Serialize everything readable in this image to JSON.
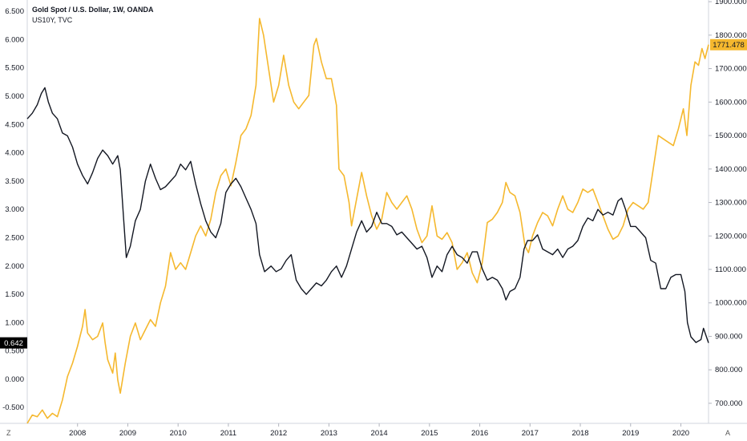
{
  "header": {
    "title": "Gold Spot / U.S. Dollar, 1W, OANDA",
    "subtitle": "US10Y, TVC"
  },
  "corner": {
    "left": "Z",
    "right": "A"
  },
  "colors": {
    "gold": "#f5b82e",
    "yield": "#131722",
    "axis": "#d1d4dc",
    "badge_yield_bg": "#000000"
  },
  "chart_data": {
    "type": "line",
    "x_ticks": [
      "2008",
      "2009",
      "2010",
      "2011",
      "2012",
      "2013",
      "2014",
      "2015",
      "2016",
      "2017",
      "2018",
      "2019",
      "2020"
    ],
    "x_range": [
      2007.0,
      2020.55
    ],
    "left_axis": {
      "ticks": [
        "6.500",
        "6.000",
        "5.500",
        "5.000",
        "4.500",
        "4.000",
        "3.500",
        "3.000",
        "2.500",
        "2.000",
        "1.500",
        "1.000",
        "0.500",
        "0.000",
        "-0.500"
      ],
      "range": [
        -0.78,
        6.7
      ]
    },
    "right_axis": {
      "ticks": [
        "1900.000",
        "1800.000",
        "1700.000",
        "1600.000",
        "1500.000",
        "1400.000",
        "1300.000",
        "1200.000",
        "1100.000",
        "1000.000",
        "900.000",
        "800.000",
        "700.000"
      ],
      "range": [
        640,
        1905
      ]
    },
    "series": [
      {
        "name": "US10Y",
        "axis": "left",
        "last_value": "0.642",
        "points": [
          [
            2007.0,
            4.6
          ],
          [
            2007.1,
            4.7
          ],
          [
            2007.2,
            4.85
          ],
          [
            2007.28,
            5.05
          ],
          [
            2007.35,
            5.15
          ],
          [
            2007.42,
            4.9
          ],
          [
            2007.5,
            4.7
          ],
          [
            2007.6,
            4.6
          ],
          [
            2007.7,
            4.35
          ],
          [
            2007.8,
            4.3
          ],
          [
            2007.9,
            4.1
          ],
          [
            2008.0,
            3.8
          ],
          [
            2008.1,
            3.6
          ],
          [
            2008.2,
            3.45
          ],
          [
            2008.3,
            3.65
          ],
          [
            2008.4,
            3.9
          ],
          [
            2008.5,
            4.05
          ],
          [
            2008.6,
            3.95
          ],
          [
            2008.7,
            3.8
          ],
          [
            2008.8,
            3.95
          ],
          [
            2008.85,
            3.7
          ],
          [
            2008.92,
            2.8
          ],
          [
            2008.97,
            2.15
          ],
          [
            2009.05,
            2.35
          ],
          [
            2009.15,
            2.8
          ],
          [
            2009.25,
            3.0
          ],
          [
            2009.35,
            3.5
          ],
          [
            2009.45,
            3.8
          ],
          [
            2009.55,
            3.55
          ],
          [
            2009.65,
            3.35
          ],
          [
            2009.75,
            3.4
          ],
          [
            2009.85,
            3.5
          ],
          [
            2009.95,
            3.6
          ],
          [
            2010.05,
            3.8
          ],
          [
            2010.15,
            3.7
          ],
          [
            2010.25,
            3.85
          ],
          [
            2010.35,
            3.45
          ],
          [
            2010.45,
            3.1
          ],
          [
            2010.55,
            2.8
          ],
          [
            2010.65,
            2.6
          ],
          [
            2010.75,
            2.5
          ],
          [
            2010.85,
            2.75
          ],
          [
            2010.95,
            3.3
          ],
          [
            2011.05,
            3.45
          ],
          [
            2011.15,
            3.55
          ],
          [
            2011.25,
            3.4
          ],
          [
            2011.35,
            3.2
          ],
          [
            2011.45,
            3.0
          ],
          [
            2011.55,
            2.75
          ],
          [
            2011.62,
            2.2
          ],
          [
            2011.72,
            1.9
          ],
          [
            2011.85,
            2.0
          ],
          [
            2011.95,
            1.9
          ],
          [
            2012.05,
            1.95
          ],
          [
            2012.15,
            2.1
          ],
          [
            2012.25,
            2.2
          ],
          [
            2012.35,
            1.75
          ],
          [
            2012.45,
            1.6
          ],
          [
            2012.55,
            1.5
          ],
          [
            2012.65,
            1.6
          ],
          [
            2012.75,
            1.7
          ],
          [
            2012.85,
            1.65
          ],
          [
            2012.95,
            1.75
          ],
          [
            2013.05,
            1.9
          ],
          [
            2013.15,
            2.0
          ],
          [
            2013.25,
            1.8
          ],
          [
            2013.35,
            2.0
          ],
          [
            2013.45,
            2.3
          ],
          [
            2013.55,
            2.6
          ],
          [
            2013.65,
            2.8
          ],
          [
            2013.75,
            2.6
          ],
          [
            2013.85,
            2.7
          ],
          [
            2013.95,
            2.95
          ],
          [
            2014.05,
            2.75
          ],
          [
            2014.15,
            2.75
          ],
          [
            2014.25,
            2.7
          ],
          [
            2014.35,
            2.55
          ],
          [
            2014.45,
            2.6
          ],
          [
            2014.55,
            2.5
          ],
          [
            2014.65,
            2.4
          ],
          [
            2014.75,
            2.3
          ],
          [
            2014.85,
            2.35
          ],
          [
            2014.95,
            2.15
          ],
          [
            2015.05,
            1.8
          ],
          [
            2015.15,
            2.0
          ],
          [
            2015.25,
            1.9
          ],
          [
            2015.35,
            2.2
          ],
          [
            2015.45,
            2.35
          ],
          [
            2015.55,
            2.2
          ],
          [
            2015.65,
            2.15
          ],
          [
            2015.75,
            2.05
          ],
          [
            2015.85,
            2.25
          ],
          [
            2015.95,
            2.25
          ],
          [
            2016.05,
            1.95
          ],
          [
            2016.15,
            1.75
          ],
          [
            2016.25,
            1.8
          ],
          [
            2016.35,
            1.75
          ],
          [
            2016.45,
            1.6
          ],
          [
            2016.52,
            1.4
          ],
          [
            2016.6,
            1.55
          ],
          [
            2016.7,
            1.6
          ],
          [
            2016.8,
            1.8
          ],
          [
            2016.88,
            2.3
          ],
          [
            2016.95,
            2.45
          ],
          [
            2017.05,
            2.45
          ],
          [
            2017.15,
            2.55
          ],
          [
            2017.25,
            2.3
          ],
          [
            2017.35,
            2.25
          ],
          [
            2017.45,
            2.2
          ],
          [
            2017.55,
            2.3
          ],
          [
            2017.65,
            2.15
          ],
          [
            2017.75,
            2.3
          ],
          [
            2017.85,
            2.35
          ],
          [
            2017.95,
            2.45
          ],
          [
            2018.05,
            2.7
          ],
          [
            2018.15,
            2.85
          ],
          [
            2018.25,
            2.8
          ],
          [
            2018.35,
            3.0
          ],
          [
            2018.45,
            2.9
          ],
          [
            2018.55,
            2.95
          ],
          [
            2018.65,
            2.9
          ],
          [
            2018.75,
            3.15
          ],
          [
            2018.82,
            3.2
          ],
          [
            2018.9,
            3.0
          ],
          [
            2019.0,
            2.7
          ],
          [
            2019.1,
            2.7
          ],
          [
            2019.2,
            2.6
          ],
          [
            2019.3,
            2.5
          ],
          [
            2019.4,
            2.1
          ],
          [
            2019.5,
            2.05
          ],
          [
            2019.6,
            1.6
          ],
          [
            2019.7,
            1.6
          ],
          [
            2019.8,
            1.8
          ],
          [
            2019.9,
            1.85
          ],
          [
            2020.0,
            1.85
          ],
          [
            2020.08,
            1.55
          ],
          [
            2020.13,
            1.0
          ],
          [
            2020.2,
            0.75
          ],
          [
            2020.3,
            0.65
          ],
          [
            2020.4,
            0.7
          ],
          [
            2020.45,
            0.9
          ],
          [
            2020.55,
            0.642
          ]
        ]
      },
      {
        "name": "XAUUSD",
        "axis": "right",
        "last_value": "1771.478",
        "points": [
          [
            2007.0,
            640
          ],
          [
            2007.1,
            665
          ],
          [
            2007.2,
            660
          ],
          [
            2007.3,
            680
          ],
          [
            2007.4,
            655
          ],
          [
            2007.5,
            670
          ],
          [
            2007.6,
            660
          ],
          [
            2007.7,
            710
          ],
          [
            2007.8,
            780
          ],
          [
            2007.9,
            820
          ],
          [
            2008.0,
            870
          ],
          [
            2008.1,
            930
          ],
          [
            2008.15,
            980
          ],
          [
            2008.2,
            910
          ],
          [
            2008.3,
            890
          ],
          [
            2008.4,
            900
          ],
          [
            2008.5,
            940
          ],
          [
            2008.55,
            880
          ],
          [
            2008.6,
            830
          ],
          [
            2008.7,
            790
          ],
          [
            2008.75,
            850
          ],
          [
            2008.8,
            770
          ],
          [
            2008.85,
            730
          ],
          [
            2008.95,
            820
          ],
          [
            2009.05,
            900
          ],
          [
            2009.15,
            940
          ],
          [
            2009.25,
            890
          ],
          [
            2009.35,
            920
          ],
          [
            2009.45,
            950
          ],
          [
            2009.55,
            930
          ],
          [
            2009.65,
            1000
          ],
          [
            2009.75,
            1050
          ],
          [
            2009.85,
            1150
          ],
          [
            2009.95,
            1100
          ],
          [
            2010.05,
            1120
          ],
          [
            2010.15,
            1100
          ],
          [
            2010.25,
            1150
          ],
          [
            2010.35,
            1200
          ],
          [
            2010.45,
            1230
          ],
          [
            2010.55,
            1200
          ],
          [
            2010.65,
            1250
          ],
          [
            2010.75,
            1330
          ],
          [
            2010.85,
            1380
          ],
          [
            2010.95,
            1400
          ],
          [
            2011.05,
            1350
          ],
          [
            2011.15,
            1420
          ],
          [
            2011.25,
            1500
          ],
          [
            2011.35,
            1520
          ],
          [
            2011.45,
            1560
          ],
          [
            2011.55,
            1650
          ],
          [
            2011.62,
            1850
          ],
          [
            2011.7,
            1800
          ],
          [
            2011.8,
            1700
          ],
          [
            2011.9,
            1600
          ],
          [
            2012.0,
            1650
          ],
          [
            2012.1,
            1740
          ],
          [
            2012.2,
            1650
          ],
          [
            2012.3,
            1600
          ],
          [
            2012.4,
            1580
          ],
          [
            2012.5,
            1600
          ],
          [
            2012.6,
            1620
          ],
          [
            2012.7,
            1770
          ],
          [
            2012.75,
            1790
          ],
          [
            2012.85,
            1720
          ],
          [
            2012.95,
            1670
          ],
          [
            2013.05,
            1670
          ],
          [
            2013.15,
            1590
          ],
          [
            2013.2,
            1400
          ],
          [
            2013.3,
            1380
          ],
          [
            2013.4,
            1300
          ],
          [
            2013.45,
            1230
          ],
          [
            2013.55,
            1310
          ],
          [
            2013.65,
            1390
          ],
          [
            2013.75,
            1320
          ],
          [
            2013.85,
            1260
          ],
          [
            2013.95,
            1220
          ],
          [
            2014.05,
            1250
          ],
          [
            2014.15,
            1330
          ],
          [
            2014.25,
            1300
          ],
          [
            2014.35,
            1280
          ],
          [
            2014.45,
            1300
          ],
          [
            2014.55,
            1320
          ],
          [
            2014.65,
            1280
          ],
          [
            2014.75,
            1220
          ],
          [
            2014.85,
            1180
          ],
          [
            2014.95,
            1200
          ],
          [
            2015.05,
            1290
          ],
          [
            2015.15,
            1200
          ],
          [
            2015.25,
            1190
          ],
          [
            2015.35,
            1210
          ],
          [
            2015.45,
            1180
          ],
          [
            2015.55,
            1100
          ],
          [
            2015.65,
            1120
          ],
          [
            2015.75,
            1150
          ],
          [
            2015.85,
            1090
          ],
          [
            2015.95,
            1060
          ],
          [
            2016.05,
            1120
          ],
          [
            2016.15,
            1240
          ],
          [
            2016.25,
            1250
          ],
          [
            2016.35,
            1270
          ],
          [
            2016.45,
            1300
          ],
          [
            2016.52,
            1360
          ],
          [
            2016.6,
            1330
          ],
          [
            2016.7,
            1320
          ],
          [
            2016.8,
            1270
          ],
          [
            2016.9,
            1170
          ],
          [
            2016.97,
            1150
          ],
          [
            2017.05,
            1200
          ],
          [
            2017.15,
            1240
          ],
          [
            2017.25,
            1270
          ],
          [
            2017.35,
            1260
          ],
          [
            2017.45,
            1230
          ],
          [
            2017.55,
            1280
          ],
          [
            2017.65,
            1320
          ],
          [
            2017.75,
            1280
          ],
          [
            2017.85,
            1270
          ],
          [
            2017.95,
            1300
          ],
          [
            2018.05,
            1340
          ],
          [
            2018.15,
            1330
          ],
          [
            2018.25,
            1340
          ],
          [
            2018.35,
            1300
          ],
          [
            2018.45,
            1260
          ],
          [
            2018.55,
            1220
          ],
          [
            2018.65,
            1190
          ],
          [
            2018.75,
            1200
          ],
          [
            2018.85,
            1230
          ],
          [
            2018.95,
            1280
          ],
          [
            2019.05,
            1300
          ],
          [
            2019.15,
            1290
          ],
          [
            2019.25,
            1280
          ],
          [
            2019.35,
            1300
          ],
          [
            2019.45,
            1400
          ],
          [
            2019.55,
            1500
          ],
          [
            2019.65,
            1490
          ],
          [
            2019.75,
            1480
          ],
          [
            2019.85,
            1470
          ],
          [
            2019.95,
            1520
          ],
          [
            2020.05,
            1580
          ],
          [
            2020.12,
            1500
          ],
          [
            2020.2,
            1650
          ],
          [
            2020.28,
            1720
          ],
          [
            2020.35,
            1710
          ],
          [
            2020.42,
            1760
          ],
          [
            2020.48,
            1730
          ],
          [
            2020.55,
            1771.478
          ]
        ]
      }
    ]
  }
}
